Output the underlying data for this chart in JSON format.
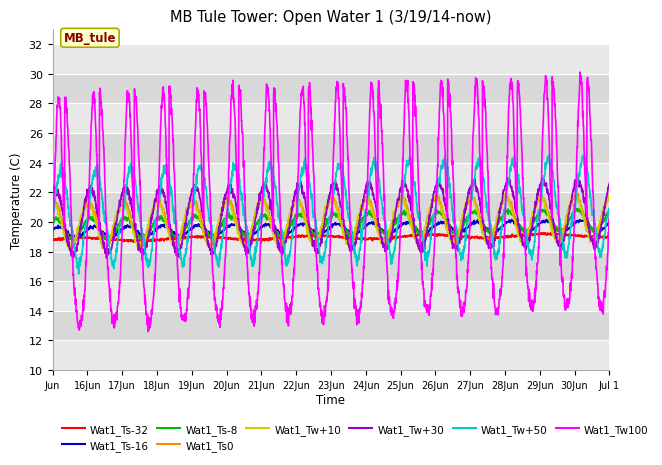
{
  "title": "MB Tule Tower: Open Water 1 (3/19/14-now)",
  "xlabel": "Time",
  "ylabel": "Temperature (C)",
  "ylim": [
    10,
    33
  ],
  "yticks": [
    10,
    12,
    14,
    16,
    18,
    20,
    22,
    24,
    26,
    28,
    30,
    32
  ],
  "bg_color": "#ffffff",
  "plot_bg_color": "#ffffff",
  "annotation_text": "MB_tule",
  "annotation_color": "#8B0000",
  "annotation_bg": "#ffffcc",
  "series": {
    "Wat1_Ts-32": {
      "color": "#ff0000",
      "lw": 1.2
    },
    "Wat1_Ts-16": {
      "color": "#0000cc",
      "lw": 1.2
    },
    "Wat1_Ts-8": {
      "color": "#00bb00",
      "lw": 1.2
    },
    "Wat1_Ts0": {
      "color": "#ff8800",
      "lw": 1.2
    },
    "Wat1_Tw+10": {
      "color": "#cccc00",
      "lw": 1.2
    },
    "Wat1_Tw+30": {
      "color": "#9900cc",
      "lw": 1.2
    },
    "Wat1_Tw+50": {
      "color": "#00cccc",
      "lw": 1.2
    },
    "Wat1_Tw100": {
      "color": "#ff00ff",
      "lw": 1.2
    }
  },
  "stripe_colors": [
    "#e8e8e8",
    "#d8d8d8"
  ],
  "xstart": 0,
  "xend": 16,
  "n_points": 1920
}
